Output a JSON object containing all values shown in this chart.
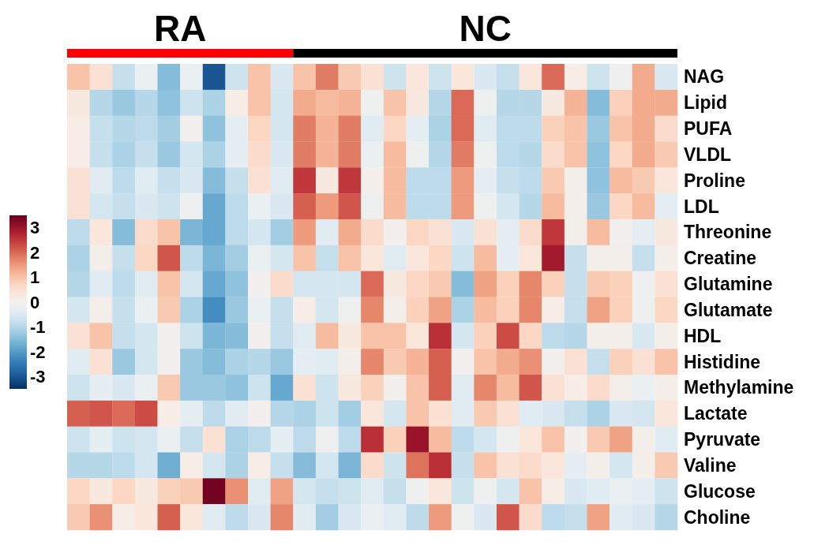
{
  "chart_data": {
    "type": "heatmap",
    "categories": [
      null,
      null,
      null,
      null,
      null,
      null,
      null,
      null,
      null,
      null,
      null,
      null,
      null,
      null,
      null,
      null,
      null,
      null,
      null,
      null,
      null,
      null,
      null,
      null,
      null,
      null,
      null
    ],
    "y_categories": [
      "NAG",
      "Lipid",
      "PUFA",
      "VLDL",
      "Proline",
      "LDL",
      "Threonine",
      "Creatine",
      "Glutamine",
      "Glutamate",
      "HDL",
      "Histidine",
      "Methylamine",
      "Lactate",
      "Pyruvate",
      "Valine",
      "Glucose",
      "Choline"
    ],
    "annotations": [
      "RA",
      "NC"
    ],
    "cells": [
      [
        1,
        0.5,
        -0.8,
        -0.2,
        -1.5,
        -0.2,
        -3,
        -0.7,
        1,
        -0.5,
        1,
        1.8,
        0.9,
        0.5,
        -0.7,
        0.4,
        -0.7,
        0.4,
        -0.5,
        -0.8,
        0.4,
        2,
        0.2,
        -0.7,
        -0.1,
        1.3,
        -0.5
      ],
      [
        0.3,
        -1,
        -1.3,
        -1,
        -1.4,
        -0.7,
        -1.1,
        0.2,
        1,
        -0.6,
        1.3,
        1.1,
        1.2,
        -0.1,
        1,
        0.3,
        -1,
        2,
        -0.1,
        -1,
        -1,
        0.3,
        1.2,
        -1.5,
        0.8,
        1.3,
        1.3
      ],
      [
        0.2,
        -0.8,
        -1,
        -0.9,
        -1.2,
        0,
        -1.4,
        -0.3,
        0.7,
        -0.6,
        1.8,
        1.2,
        1.8,
        -0.4,
        0.7,
        -0.3,
        -1.1,
        2,
        -0.4,
        -0.9,
        -0.9,
        0.8,
        1,
        -1.3,
        1,
        1.3,
        0.6
      ],
      [
        0.2,
        -0.8,
        -1.1,
        -0.8,
        -1.3,
        -0.6,
        -1.1,
        -0.3,
        0.6,
        -0.5,
        1.8,
        1.2,
        1.8,
        -0.2,
        1.1,
        -0.1,
        -1,
        1.8,
        -0.1,
        -0.9,
        -1,
        0.6,
        1,
        -1.4,
        0.7,
        1.3,
        0.9
      ],
      [
        0.5,
        -0.4,
        -0.9,
        -0.4,
        -0.8,
        -0.5,
        -1.5,
        -0.8,
        0.5,
        -0.4,
        2.5,
        0.3,
        2.5,
        0.1,
        1.1,
        -0.9,
        -0.9,
        1.5,
        -0.3,
        -0.8,
        -0.9,
        0.9,
        0.1,
        -1.4,
        1.1,
        0.9,
        0.4
      ],
      [
        0.5,
        -0.6,
        -0.8,
        -0.5,
        -0.7,
        -0.1,
        -1.8,
        -0.9,
        -0.2,
        -0.5,
        2.1,
        1.5,
        2.2,
        -0.1,
        1.1,
        -0.9,
        -0.9,
        1.5,
        -0.1,
        -0.6,
        -1,
        1.1,
        0.1,
        -1.3,
        0.7,
        1.1,
        -0.3
      ],
      [
        -0.9,
        0.4,
        -1.5,
        0.6,
        1,
        -1.6,
        -1.8,
        -0.9,
        -0.6,
        -1.2,
        1.5,
        -0.4,
        1.3,
        0.6,
        0,
        0.7,
        0.5,
        -0.5,
        0.5,
        -0.3,
        0.6,
        2.5,
        0.1,
        1.1,
        0,
        -0.3,
        0.3
      ],
      [
        -1.1,
        0.1,
        -0.8,
        0.7,
        2.2,
        -0.9,
        -1.6,
        -1.2,
        -0.2,
        -0.6,
        1,
        -0.8,
        1,
        0.4,
        -0.4,
        0.4,
        0.7,
        -0.7,
        1.1,
        -0.3,
        0.4,
        2.9,
        -0.8,
        0.1,
        0.1,
        -0.8,
        0.1
      ],
      [
        -1,
        -0.4,
        -0.9,
        -0.4,
        1,
        -0.6,
        -1.8,
        -1.4,
        0,
        0.6,
        -0.6,
        -0.6,
        -0.6,
        2,
        0.3,
        0.7,
        0.9,
        -1.5,
        1.4,
        0.8,
        1.7,
        0.8,
        -0.8,
        0.9,
        0.8,
        -0.1,
        0.5
      ],
      [
        -0.6,
        0.1,
        -0.8,
        -0.2,
        0.9,
        -1.1,
        -2.2,
        -1.3,
        -0.2,
        -0.8,
        0.2,
        -0.6,
        -0.1,
        1.7,
        0.1,
        0.8,
        1.4,
        -1.1,
        1.1,
        0.8,
        1.7,
        0.2,
        -0.8,
        1.4,
        0.8,
        -0.1,
        0.7
      ],
      [
        0.5,
        1,
        -0.8,
        -0.6,
        0,
        -0.7,
        -1.6,
        -1.5,
        0,
        -0.8,
        -0.4,
        1.1,
        0.3,
        1,
        1,
        0.4,
        2.6,
        -0.6,
        0.8,
        2.3,
        0.7,
        -0.9,
        -1,
        0.1,
        0.1,
        -0.5,
        0.1
      ],
      [
        -0.4,
        0.5,
        -1.3,
        -0.6,
        0,
        -1.3,
        -1.5,
        -1.1,
        -1,
        -1.3,
        -0.3,
        -0.4,
        0.1,
        1.7,
        0.9,
        1.2,
        2.1,
        0,
        1,
        1.3,
        1.6,
        0,
        0.5,
        -0.8,
        0.8,
        0.5,
        1
      ],
      [
        -0.7,
        -0.3,
        -0.5,
        -0.2,
        0.9,
        -1.3,
        -1.3,
        -1.4,
        -0.7,
        -1.8,
        0.5,
        -0.7,
        0.3,
        0.8,
        0,
        1,
        2.1,
        -0.4,
        1.7,
        1.1,
        2.2,
        0.5,
        0.2,
        0.6,
        0.1,
        -0.2,
        0.1
      ],
      [
        2.1,
        2.2,
        2,
        2.3,
        0.2,
        -0.3,
        -0.9,
        -0.4,
        0,
        -1,
        -1.1,
        -0.7,
        -1.2,
        0.4,
        -0.6,
        1,
        0.5,
        -0.4,
        0.9,
        0.5,
        -0.4,
        -0.5,
        -0.8,
        -1.1,
        -0.5,
        -0.6,
        0.4
      ],
      [
        -0.7,
        -0.3,
        -0.7,
        -0.6,
        -0.2,
        -0.8,
        0.5,
        -1.1,
        -0.9,
        -0.3,
        -0.9,
        -0.1,
        -0.9,
        2.6,
        0.8,
        3,
        1.1,
        -0.9,
        -0.6,
        -0.1,
        0.4,
        1,
        0,
        0.9,
        1.4,
        0.1,
        -0.4
      ],
      [
        -1,
        -1,
        -0.9,
        -0.6,
        -1.7,
        0.2,
        -0.6,
        -1.1,
        0.2,
        -0.8,
        -1.5,
        -0.6,
        -1.6,
        0.6,
        -0.7,
        1.9,
        2.6,
        -0.8,
        1,
        0.5,
        0.6,
        0.4,
        -0.3,
        0.1,
        -0.6,
        0.1,
        0.9
      ],
      [
        0.7,
        0.3,
        0.7,
        0.3,
        0.8,
        0.9,
        3.4,
        1.6,
        -0.4,
        1.4,
        -0.6,
        -0.8,
        -0.7,
        -0.4,
        -0.8,
        -0.1,
        0.4,
        -0.7,
        -0.1,
        -0.6,
        1,
        0.2,
        -0.5,
        -0.4,
        -0.2,
        -0.3,
        -0.7
      ],
      [
        0.9,
        1.6,
        0.2,
        0.4,
        2.1,
        0.4,
        -0.4,
        -0.9,
        -0.5,
        1.7,
        -0.4,
        -1.2,
        -0.5,
        -0.2,
        -0.4,
        -0.9,
        1.5,
        -0.1,
        -0.5,
        2.2,
        0.6,
        -0.9,
        -0.8,
        1.4,
        -0.4,
        -0.5,
        -1
      ]
    ],
    "clim": [
      -3.5,
      3.5
    ],
    "cticks": [
      -3,
      -2,
      -1,
      0,
      1,
      2,
      3
    ]
  }
}
